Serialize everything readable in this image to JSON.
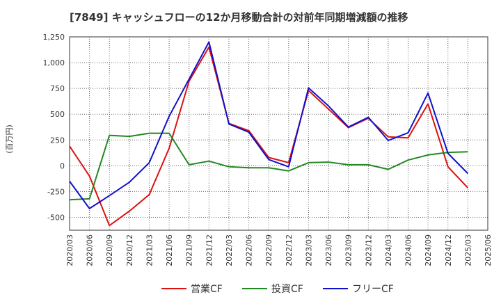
{
  "chart_data": {
    "type": "line",
    "title": "[7849]  キャッシュフローの12か月移動合計の対前年同期増減額の推移",
    "ylabel": "(百万円)",
    "xlabel": "",
    "ylim": [
      -625,
      1250
    ],
    "yticks": [
      -500,
      -250,
      0,
      250,
      500,
      750,
      1000,
      1250
    ],
    "ytick_labels": [
      "-500",
      "-250",
      "0",
      "250",
      "500",
      "750",
      "1,000",
      "1,250"
    ],
    "categories": [
      "2020/03",
      "2020/06",
      "2020/09",
      "2020/12",
      "2021/03",
      "2021/06",
      "2021/09",
      "2021/12",
      "2022/03",
      "2022/06",
      "2022/09",
      "2022/12",
      "2023/03",
      "2023/06",
      "2023/09",
      "2023/12",
      "2024/03",
      "2024/06",
      "2024/09",
      "2024/12",
      "2025/03",
      "2025/06"
    ],
    "grid": true,
    "legend_position": "bottom",
    "series": [
      {
        "name": "営業CF",
        "color": "#dd1111",
        "values": [
          190,
          -100,
          -580,
          -440,
          -280,
          170,
          820,
          1150,
          410,
          340,
          80,
          30,
          730,
          550,
          370,
          460,
          280,
          270,
          600,
          -10,
          -215,
          null
        ]
      },
      {
        "name": "投資CF",
        "color": "#228822",
        "values": [
          -330,
          -320,
          295,
          285,
          315,
          315,
          10,
          45,
          -10,
          -20,
          -20,
          -50,
          30,
          35,
          10,
          10,
          -35,
          55,
          105,
          130,
          135,
          null
        ]
      },
      {
        "name": "フリーCF",
        "color": "#1111cc",
        "values": [
          -150,
          -415,
          -290,
          -160,
          30,
          480,
          840,
          1200,
          405,
          325,
          60,
          -10,
          755,
          580,
          375,
          470,
          245,
          320,
          705,
          120,
          -75,
          null
        ]
      }
    ]
  }
}
